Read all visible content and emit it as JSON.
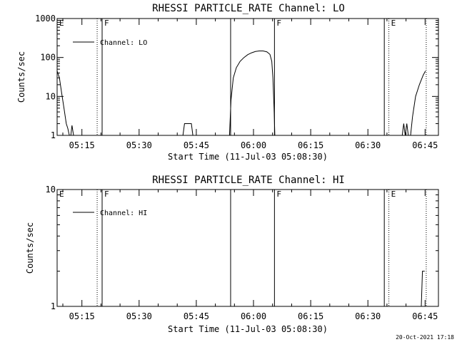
{
  "chart_data": [
    {
      "type": "line",
      "title": "RHESSI PARTICLE_RATE Channel: LO",
      "xlabel": "Start Time (11-Jul-03 05:08:30)",
      "ylabel": "Counts/sec",
      "yscale": "log",
      "ylim": [
        1,
        1000
      ],
      "yticks": [
        1,
        10,
        100,
        1000
      ],
      "ytick_labels": [
        "1",
        "10",
        "100",
        "1000"
      ],
      "xlim_minutes": [
        0,
        100
      ],
      "xticks_minutes": [
        6.5,
        21.5,
        36.5,
        51.5,
        66.5,
        81.5,
        96.5
      ],
      "xtick_labels": [
        "05:15",
        "05:30",
        "05:45",
        "06:00",
        "06:15",
        "06:30",
        "06:45"
      ],
      "legend": {
        "label": "Channel: LO",
        "position": "top-left"
      },
      "grid": false,
      "markers": [
        {
          "label": "E",
          "minute": 0,
          "style": "none"
        },
        {
          "label": "",
          "minute": 10.5,
          "style": "dotted"
        },
        {
          "label": "F",
          "minute": 11.8,
          "style": "solid"
        },
        {
          "label": "",
          "minute": 45.5,
          "style": "solid"
        },
        {
          "label": "F",
          "minute": 57.0,
          "style": "solid"
        },
        {
          "label": "",
          "minute": 85.8,
          "style": "solid"
        },
        {
          "label": "E",
          "minute": 87.0,
          "style": "dotted"
        },
        {
          "label": "",
          "minute": 96.8,
          "style": "dotted"
        }
      ],
      "series": [
        {
          "segments": [
            [
              [
                0,
                45
              ],
              [
                0.6,
                30
              ],
              [
                1.2,
                12
              ],
              [
                1.8,
                5
              ],
              [
                2.4,
                2
              ],
              [
                2.8,
                1.5
              ],
              [
                3.2,
                1
              ]
            ],
            [
              [
                3.6,
                1
              ],
              [
                3.9,
                1.8
              ],
              [
                4.3,
                1
              ]
            ],
            [
              [
                33,
                1
              ],
              [
                33.4,
                2
              ],
              [
                35.2,
                2
              ],
              [
                35.6,
                1
              ]
            ],
            [
              [
                45.2,
                1
              ],
              [
                45.6,
                8
              ],
              [
                46.2,
                30
              ],
              [
                47,
                55
              ],
              [
                48,
                80
              ],
              [
                49,
                100
              ],
              [
                50,
                118
              ],
              [
                51,
                132
              ],
              [
                52,
                142
              ],
              [
                53,
                147
              ],
              [
                54,
                147
              ],
              [
                55,
                140
              ],
              [
                55.8,
                120
              ],
              [
                56.3,
                80
              ],
              [
                56.6,
                30
              ],
              [
                56.9,
                5
              ],
              [
                57.1,
                1
              ]
            ],
            [
              [
                90.5,
                1
              ],
              [
                90.9,
                2
              ],
              [
                91.3,
                1
              ],
              [
                91.7,
                2
              ],
              [
                92.1,
                1
              ],
              [
                92.7,
                1
              ],
              [
                93.2,
                3
              ],
              [
                94,
                10
              ],
              [
                95,
                20
              ],
              [
                96,
                35
              ],
              [
                96.6,
                45
              ]
            ]
          ]
        }
      ]
    },
    {
      "type": "line",
      "title": "RHESSI PARTICLE_RATE Channel: HI",
      "xlabel": "Start Time (11-Jul-03 05:08:30)",
      "ylabel": "Counts/sec",
      "yscale": "log",
      "ylim": [
        1,
        10
      ],
      "yticks": [
        1,
        10
      ],
      "ytick_labels": [
        "1",
        "10"
      ],
      "xlim_minutes": [
        0,
        100
      ],
      "xticks_minutes": [
        6.5,
        21.5,
        36.5,
        51.5,
        66.5,
        81.5,
        96.5
      ],
      "xtick_labels": [
        "05:15",
        "05:30",
        "05:45",
        "06:00",
        "06:15",
        "06:30",
        "06:45"
      ],
      "legend": {
        "label": "Channel: HI",
        "position": "top-left"
      },
      "grid": false,
      "markers": [
        {
          "label": "E",
          "minute": 0,
          "style": "none"
        },
        {
          "label": "",
          "minute": 10.5,
          "style": "dotted"
        },
        {
          "label": "F",
          "minute": 11.8,
          "style": "solid"
        },
        {
          "label": "",
          "minute": 45.5,
          "style": "solid"
        },
        {
          "label": "F",
          "minute": 57.0,
          "style": "solid"
        },
        {
          "label": "",
          "minute": 85.8,
          "style": "solid"
        },
        {
          "label": "E",
          "minute": 87.0,
          "style": "dotted"
        },
        {
          "label": "",
          "minute": 96.8,
          "style": "dotted"
        }
      ],
      "series": [
        {
          "segments": [
            [
              [
                95.5,
                1
              ],
              [
                95.8,
                2
              ],
              [
                96.4,
                2
              ]
            ]
          ]
        }
      ]
    }
  ],
  "footer": {
    "timestamp": "20-Oct-2021 17:18"
  }
}
